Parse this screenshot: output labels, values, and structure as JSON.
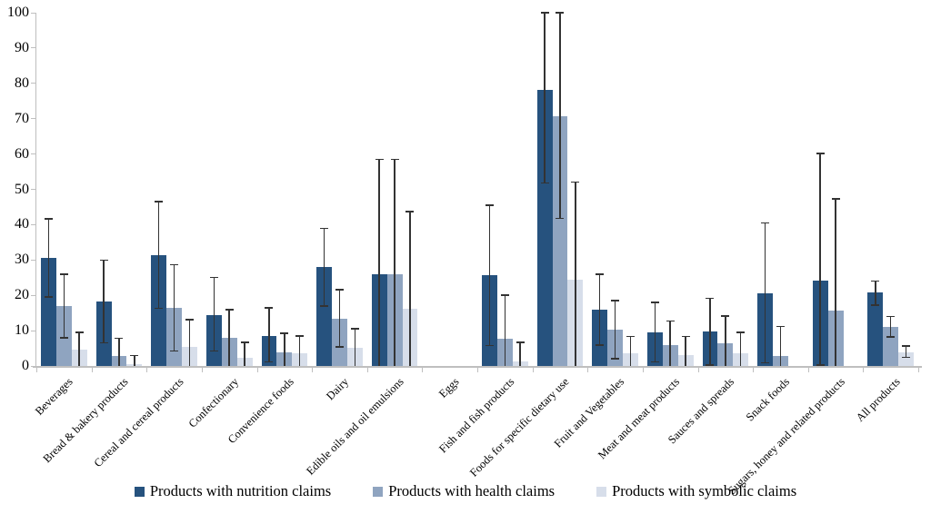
{
  "chart_data": {
    "type": "bar",
    "title": "",
    "xlabel": "",
    "ylabel": "",
    "ylim": [
      0,
      100
    ],
    "yticks": [
      0,
      10,
      20,
      30,
      40,
      50,
      60,
      70,
      80,
      90,
      100
    ],
    "grid": false,
    "legend_position": "bottom",
    "error_bars": true,
    "categories": [
      "Beverages",
      "Bread & bakery products",
      "Cereal and cereal products",
      "Confectionary",
      "Convenience foods",
      "Dairy",
      "Edible oils and oil emulsions",
      "Eggs",
      "Fish and fish products",
      "Foods for specific dietary use",
      "Fruit and Vegetables",
      "Meat and meat products",
      "Sauces and spreads",
      "Snack foods",
      "Sugars, honey and related products",
      "All products"
    ],
    "series": [
      {
        "name": "Products with nutrition claims",
        "color": "#26527E",
        "values": [
          30.6,
          18.2,
          31.3,
          14.5,
          8.6,
          28.0,
          25.9,
          0,
          25.6,
          78.1,
          15.9,
          9.5,
          9.7,
          20.5,
          24.1,
          20.7
        ],
        "err_low": [
          19.5,
          6.5,
          16.3,
          4.3,
          1.1,
          17.0,
          0,
          null,
          5.8,
          51.8,
          5.9,
          1.1,
          0.3,
          0.9,
          0.3,
          17.2
        ],
        "err_high": [
          41.7,
          29.9,
          46.5,
          25.1,
          16.4,
          38.9,
          58.5,
          null,
          45.5,
          100,
          26.0,
          18.0,
          19.2,
          40.5,
          60.2,
          24.1
        ]
      },
      {
        "name": "Products with health claims",
        "color": "#8FA4C0",
        "values": [
          17.0,
          2.8,
          16.4,
          8.0,
          3.8,
          13.4,
          25.9,
          0,
          7.7,
          70.7,
          10.2,
          6.0,
          6.3,
          2.8,
          15.8,
          11.0
        ],
        "err_low": [
          8.0,
          0,
          4.3,
          0,
          0,
          5.4,
          0,
          null,
          0,
          41.8,
          2.0,
          0,
          0,
          0,
          0,
          8.2
        ],
        "err_high": [
          26.0,
          7.8,
          28.6,
          16.0,
          9.3,
          21.6,
          58.5,
          null,
          20.0,
          100,
          18.5,
          12.7,
          14.2,
          11.2,
          47.3,
          14.0
        ]
      },
      {
        "name": "Products with symbolic claims",
        "color": "#D7DEEA",
        "values": [
          4.5,
          0.4,
          5.4,
          2.2,
          3.5,
          5.2,
          16.2,
          0,
          1.4,
          24.3,
          3.5,
          3.1,
          3.5,
          0,
          0,
          3.9
        ],
        "err_low": [
          0,
          0,
          0,
          0,
          0,
          0,
          0,
          null,
          0,
          0,
          0,
          0,
          0,
          null,
          null,
          2.4
        ],
        "err_high": [
          9.5,
          2.9,
          13.1,
          6.7,
          8.5,
          10.6,
          43.7,
          null,
          6.7,
          52.1,
          8.4,
          8.4,
          9.5,
          null,
          null,
          5.7
        ]
      }
    ],
    "colors": {
      "axis": "#bfbfbf",
      "error_bar": "#333333",
      "background": "#ffffff"
    }
  }
}
